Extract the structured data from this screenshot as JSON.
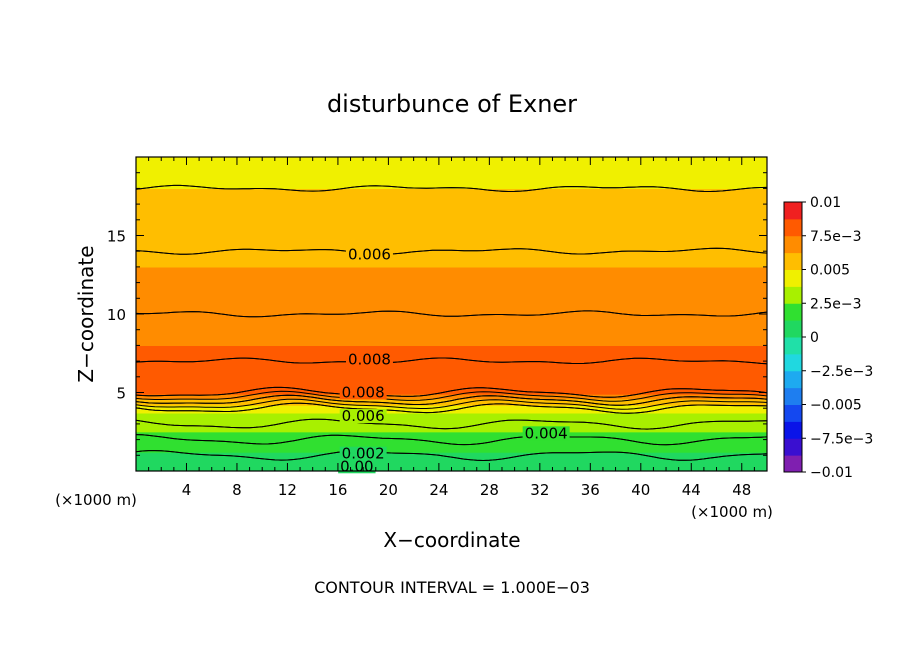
{
  "chart_data": {
    "type": "heatmap",
    "title": "disturbunce of Exner",
    "xlabel": "X−coordinate",
    "ylabel": "Z−coordinate",
    "x_unit": "(×1000 m)",
    "y_unit": "(×1000 m)",
    "xlim": [
      0,
      50
    ],
    "ylim": [
      0,
      20
    ],
    "x_ticks": [
      4,
      8,
      12,
      16,
      20,
      24,
      28,
      32,
      36,
      40,
      44,
      48
    ],
    "x_tick_labels": [
      "4",
      "8",
      "12",
      "16",
      "20",
      "24",
      "28",
      "32",
      "36",
      "40",
      "44",
      "48"
    ],
    "y_ticks": [
      5,
      10,
      15
    ],
    "y_tick_labels": [
      "5",
      "10",
      "15"
    ],
    "footer": "CONTOUR INTERVAL = 1.000E−03",
    "contour_interval": 0.001,
    "colorbar": {
      "min": -0.01,
      "max": 0.01,
      "ticks": [
        0.01,
        0.0075,
        0.005,
        0.0025,
        0,
        -0.0025,
        -0.005,
        -0.0075,
        -0.01
      ],
      "tick_labels": [
        "0.01",
        "7.5e−3",
        "0.005",
        "2.5e−3",
        "0",
        "−2.5e−3",
        "−0.005",
        "−7.5e−3",
        "−0.01"
      ]
    },
    "color_levels": [
      {
        "value": -0.01,
        "color": "#7f1fb0"
      },
      {
        "value": -0.00875,
        "color": "#3a0fd0"
      },
      {
        "value": -0.0075,
        "color": "#0a14e8"
      },
      {
        "value": -0.00625,
        "color": "#1448f0"
      },
      {
        "value": -0.005,
        "color": "#1e7ef0"
      },
      {
        "value": -0.00375,
        "color": "#1eaaf0"
      },
      {
        "value": -0.0025,
        "color": "#20d8e0"
      },
      {
        "value": -0.00125,
        "color": "#20e0a8"
      },
      {
        "value": 0,
        "color": "#20d860"
      },
      {
        "value": 0.00125,
        "color": "#30e030"
      },
      {
        "value": 0.0025,
        "color": "#a8f000"
      },
      {
        "value": 0.00375,
        "color": "#f0f000"
      },
      {
        "value": 0.005,
        "color": "#ffbe00"
      },
      {
        "value": 0.00625,
        "color": "#ff8c00"
      },
      {
        "value": 0.0075,
        "color": "#ff5a00"
      },
      {
        "value": 0.00875,
        "color": "#f02020"
      },
      {
        "value": 0.01,
        "color": "#ff8080"
      }
    ],
    "profile": {
      "z": [
        0.0,
        0.5,
        1.0,
        1.5,
        2.0,
        2.5,
        3.0,
        3.5,
        4.0,
        4.5,
        5.0,
        6.0,
        7.0,
        8.0,
        10.0,
        12.0,
        14.0,
        16.0,
        18.0,
        20.0
      ],
      "value": [
        0.0,
        0.0005,
        0.001,
        0.0015,
        0.002,
        0.0025,
        0.003,
        0.0035,
        0.004,
        0.006,
        0.008,
        0.0085,
        0.008,
        0.0075,
        0.007,
        0.0065,
        0.006,
        0.0055,
        0.005,
        0.0045
      ]
    },
    "contour_labels": [
      {
        "text": "0.006",
        "x": 18.5,
        "z": 13.8
      },
      {
        "text": "0.008",
        "x": 18.5,
        "z": 7.1
      },
      {
        "text": "0.008",
        "x": 18.0,
        "z": 5.0
      },
      {
        "text": "0.006",
        "x": 18.0,
        "z": 3.5
      },
      {
        "text": "0.004",
        "x": 32.5,
        "z": 2.4
      },
      {
        "text": "0.002",
        "x": 18.0,
        "z": 1.1
      },
      {
        "text": "0.00",
        "x": 17.5,
        "z": 0.3
      }
    ]
  }
}
